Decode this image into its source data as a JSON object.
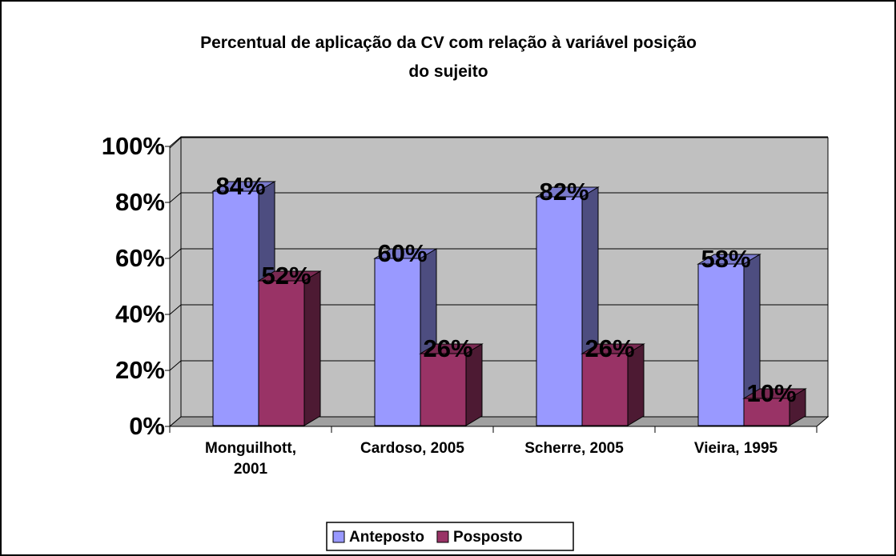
{
  "chart_data": {
    "type": "bar3d",
    "title": "Percentual de aplicação da CV com relação à variável posição do sujeito",
    "categories": [
      "Monguilhott, 2001",
      "Cardoso, 2005",
      "Scherre, 2005",
      "Vieira, 1995"
    ],
    "series": [
      {
        "name": "Anteposto",
        "color": "#9999ff",
        "values": [
          84,
          60,
          82,
          58
        ],
        "value_labels": [
          "84%",
          "60%",
          "82%",
          "58%"
        ]
      },
      {
        "name": "Posposto",
        "color": "#993366",
        "values": [
          52,
          26,
          26,
          10
        ],
        "value_labels": [
          "52%",
          "26%",
          "26%",
          "10%"
        ]
      }
    ],
    "ylim": [
      0,
      100
    ],
    "yticks": [
      {
        "value": 0,
        "label": "0%"
      },
      {
        "value": 20,
        "label": "20%"
      },
      {
        "value": 40,
        "label": "40%"
      },
      {
        "value": 60,
        "label": "60%"
      },
      {
        "value": 80,
        "label": "80%"
      },
      {
        "value": 100,
        "label": "100%"
      }
    ],
    "grid": true,
    "legend": "bottom"
  }
}
